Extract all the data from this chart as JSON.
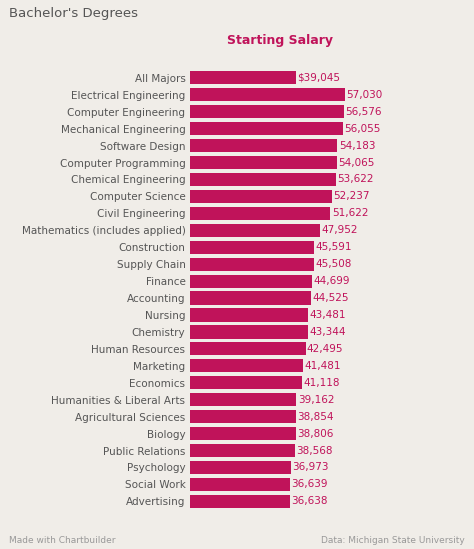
{
  "title": "Bachelor's Degrees",
  "axis_label": "Starting Salary",
  "footer_left": "Made with Chartbuilder",
  "footer_right": "Data: Michigan State University",
  "bar_color": "#c0135a",
  "label_color": "#c0135a",
  "axis_label_color": "#c0135a",
  "bg_color": "#f0ede8",
  "text_color": "#555555",
  "categories": [
    "All Majors",
    "Electrical Engineering",
    "Computer Engineering",
    "Mechanical Engineering",
    "Software Design",
    "Computer Programming",
    "Chemical Engineering",
    "Computer Science",
    "Civil Engineering",
    "Mathematics (includes applied)",
    "Construction",
    "Supply Chain",
    "Finance",
    "Accounting",
    "Nursing",
    "Chemistry",
    "Human Resources",
    "Marketing",
    "Economics",
    "Humanities & Liberal Arts",
    "Agricultural Sciences",
    "Biology",
    "Public Relations",
    "Psychology",
    "Social Work",
    "Advertising"
  ],
  "values": [
    39045,
    57030,
    56576,
    56055,
    54183,
    54065,
    53622,
    52237,
    51622,
    47952,
    45591,
    45508,
    44699,
    44525,
    43481,
    43344,
    42495,
    41481,
    41118,
    39162,
    38854,
    38806,
    38568,
    36973,
    36639,
    36638
  ],
  "value_labels": [
    "$39,045",
    "57,030",
    "56,576",
    "56,055",
    "54,183",
    "54,065",
    "53,622",
    "52,237",
    "51,622",
    "47,952",
    "45,591",
    "45,508",
    "44,699",
    "44,525",
    "43,481",
    "43,344",
    "42,495",
    "41,481",
    "41,118",
    "39,162",
    "38,854",
    "38,806",
    "38,568",
    "36,973",
    "36,639",
    "36,638"
  ],
  "xlim": [
    0,
    66000
  ],
  "title_fontsize": 9.5,
  "axis_label_fontsize": 9,
  "category_fontsize": 7.5,
  "value_fontsize": 7.5,
  "footer_fontsize": 6.5
}
